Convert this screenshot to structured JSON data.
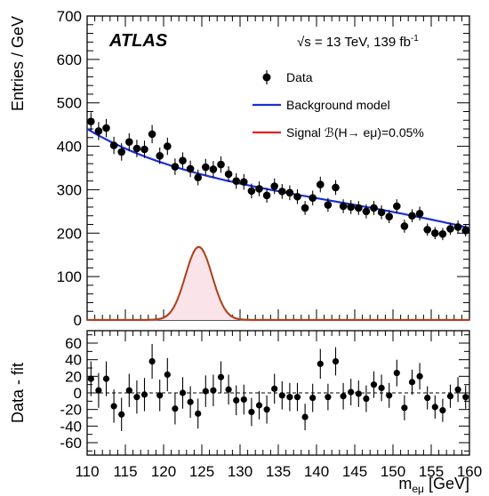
{
  "header": {
    "experiment": "ATLAS",
    "energy_text": "√s = 13 TeV, 139 fb",
    "energy_sup": "-1"
  },
  "legend": {
    "data_label": "Data",
    "background_label": "Background model",
    "signal_label": "Signal ℬ(H→ eμ)=0.05%"
  },
  "colors": {
    "background": "#1a2fd6",
    "signal": "#e82020",
    "signal_fill": "#fbe3ea",
    "data": "#000000",
    "zero_line": "#000000"
  },
  "chart_data": [
    {
      "type": "scatter",
      "panel": "main",
      "xlabel": "",
      "ylabel": "Entries / GeV",
      "xlim": [
        110,
        160
      ],
      "ylim": [
        0,
        700
      ],
      "yticks": [
        0,
        100,
        200,
        300,
        400,
        500,
        600,
        700
      ],
      "x": [
        110.5,
        111.5,
        112.5,
        113.5,
        114.5,
        115.5,
        116.5,
        117.5,
        118.5,
        119.5,
        120.5,
        121.5,
        122.5,
        123.5,
        124.5,
        125.5,
        126.5,
        127.5,
        128.5,
        129.5,
        130.5,
        131.5,
        132.5,
        133.5,
        134.5,
        135.5,
        136.5,
        137.5,
        138.5,
        139.5,
        140.5,
        141.5,
        142.5,
        143.5,
        144.5,
        145.5,
        146.5,
        147.5,
        148.5,
        149.5,
        150.5,
        151.5,
        152.5,
        153.5,
        154.5,
        155.5,
        156.5,
        157.5,
        158.5,
        159.5
      ],
      "series": [
        {
          "name": "Data",
          "y": [
            457,
            435,
            442,
            402,
            387,
            410,
            395,
            393,
            428,
            378,
            400,
            353,
            367,
            348,
            328,
            352,
            347,
            358,
            336,
            320,
            318,
            297,
            302,
            287,
            308,
            296,
            293,
            284,
            258,
            281,
            312,
            265,
            305,
            262,
            260,
            258,
            250,
            258,
            248,
            238,
            262,
            216,
            240,
            245,
            208,
            200,
            198,
            210,
            214,
            206
          ],
          "yerr": [
            21,
            21,
            21,
            20,
            20,
            20,
            20,
            20,
            21,
            19,
            20,
            19,
            19,
            19,
            18,
            19,
            19,
            19,
            18,
            18,
            18,
            17,
            17,
            17,
            18,
            17,
            17,
            17,
            16,
            17,
            18,
            16,
            17,
            16,
            16,
            16,
            16,
            16,
            16,
            15,
            16,
            15,
            15,
            16,
            14,
            14,
            14,
            14,
            15,
            14
          ]
        },
        {
          "name": "Background model",
          "curve": "exponential",
          "y": [
            440,
            335,
            265,
            212
          ]
        },
        {
          "name": "Signal ℬ(H→ eμ)=0.05%",
          "curve": "gaussian",
          "peak_x": 124.6,
          "peak_y": 168,
          "sigma": 1.75
        }
      ]
    },
    {
      "type": "scatter",
      "panel": "ratio",
      "xlabel": "m",
      "xlabel_sub": "eμ",
      "xlabel_unit": " [GeV]",
      "ylabel": "Data - fit",
      "xlim": [
        110,
        160
      ],
      "ylim": [
        -75,
        75
      ],
      "xticks": [
        110,
        115,
        120,
        125,
        130,
        135,
        140,
        145,
        150,
        155,
        160
      ],
      "yticks": [
        -60,
        -40,
        -20,
        0,
        20,
        40,
        60
      ],
      "x": [
        110.5,
        111.5,
        112.5,
        113.5,
        114.5,
        115.5,
        116.5,
        117.5,
        118.5,
        119.5,
        120.5,
        121.5,
        122.5,
        123.5,
        124.5,
        125.5,
        126.5,
        127.5,
        128.5,
        129.5,
        130.5,
        131.5,
        132.5,
        133.5,
        134.5,
        135.5,
        136.5,
        137.5,
        138.5,
        139.5,
        140.5,
        141.5,
        142.5,
        143.5,
        144.5,
        145.5,
        146.5,
        147.5,
        148.5,
        149.5,
        150.5,
        151.5,
        152.5,
        153.5,
        154.5,
        155.5,
        156.5,
        157.5,
        158.5,
        159.5
      ],
      "series": [
        {
          "name": "Data",
          "y": [
            17,
            3,
            17,
            -16,
            -26,
            3,
            -5,
            -2,
            38,
            -3,
            22,
            -19,
            0,
            -11,
            -25,
            2,
            3,
            19,
            4,
            -9,
            -8,
            -23,
            -15,
            -20,
            5,
            -3,
            -5,
            -5,
            -29,
            -6,
            35,
            -5,
            38,
            -4,
            1,
            -1,
            -7,
            10,
            6,
            -3,
            24,
            -18,
            13,
            20,
            -6,
            -17,
            -21,
            -4,
            4,
            -5
          ],
          "yerr": [
            21,
            21,
            21,
            20,
            20,
            20,
            20,
            20,
            21,
            19,
            20,
            19,
            19,
            19,
            18,
            19,
            19,
            19,
            18,
            18,
            18,
            17,
            17,
            17,
            18,
            17,
            17,
            17,
            16,
            17,
            18,
            16,
            17,
            16,
            16,
            16,
            16,
            16,
            16,
            15,
            16,
            15,
            15,
            16,
            14,
            14,
            14,
            14,
            15,
            14
          ]
        }
      ]
    }
  ]
}
